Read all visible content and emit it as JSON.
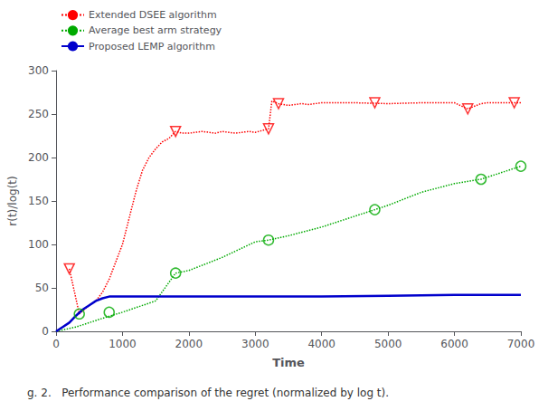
{
  "chart_data": {
    "type": "line",
    "xlabel": "Time",
    "ylabel": "r(t)/log(t)",
    "caption": "g. 2.   Performance comparison of the regret (normalized by log t).",
    "xlim": [
      0,
      7000
    ],
    "ylim": [
      0,
      300
    ],
    "xticks": [
      0,
      1000,
      2000,
      3000,
      4000,
      5000,
      6000,
      7000
    ],
    "yticks": [
      0,
      50,
      100,
      150,
      200,
      250,
      300
    ],
    "grid": false,
    "legend": "upper left",
    "series": [
      {
        "name": "Extended DSEE algorithm",
        "type": "line",
        "color": "#ff0000",
        "line_style": "dotted",
        "x": [
          200,
          350,
          500,
          600,
          700,
          800,
          900,
          1000,
          1100,
          1200,
          1300,
          1400,
          1500,
          1600,
          1700,
          1800,
          1900,
          2000,
          2100,
          2200,
          2300,
          2400,
          2500,
          2600,
          2700,
          2800,
          2900,
          3000,
          3100,
          3200,
          3250,
          3350,
          3500,
          3600,
          3700,
          3800,
          3900,
          4000,
          4500,
          5000,
          5500,
          6000,
          6200,
          6400,
          6500,
          7000
        ],
        "values": [
          72,
          20,
          30,
          35,
          45,
          60,
          80,
          100,
          130,
          160,
          185,
          200,
          210,
          218,
          222,
          230,
          228,
          228,
          229,
          230,
          229,
          228,
          230,
          229,
          228,
          229,
          230,
          229,
          231,
          233,
          265,
          262,
          260,
          261,
          262,
          261,
          262,
          263,
          263,
          262,
          263,
          263,
          256,
          262,
          263,
          263
        ]
      },
      {
        "name": "Extended DSEE algorithm",
        "type": "scatter",
        "color": "#ff0000",
        "marker": "triangle-down",
        "x": [
          200,
          1800,
          3200,
          3350,
          4800,
          6200,
          6900
        ],
        "values": [
          72,
          230,
          233,
          262,
          263,
          256,
          263
        ]
      },
      {
        "name": "Average best arm strategy",
        "type": "line",
        "color": "#00aa00",
        "line_style": "dotted",
        "x": [
          0,
          300,
          500,
          700,
          1000,
          1500,
          1800,
          2000,
          2500,
          3000,
          3200,
          3500,
          4000,
          4800,
          5000,
          5500,
          6000,
          6400,
          7000
        ],
        "values": [
          0,
          5,
          10,
          15,
          22,
          35,
          67,
          70,
          85,
          103,
          105,
          110,
          120,
          140,
          145,
          160,
          170,
          175,
          190
        ]
      },
      {
        "name": "Average best arm strategy",
        "type": "scatter",
        "color": "#00aa00",
        "marker": "circle",
        "x": [
          350,
          800,
          1800,
          3200,
          4800,
          6400,
          7000
        ],
        "values": [
          20,
          22,
          67,
          105,
          140,
          175,
          190
        ]
      },
      {
        "name": "Proposed LEMP algorithm",
        "type": "line",
        "color": "#0000cc",
        "line_style": "solid",
        "x": [
          0,
          100,
          200,
          300,
          400,
          500,
          600,
          700,
          800,
          900,
          1000,
          2000,
          3000,
          4000,
          5000,
          6000,
          7000
        ],
        "values": [
          0,
          5,
          10,
          18,
          25,
          30,
          35,
          38,
          40,
          40,
          40,
          40,
          40,
          40,
          41,
          42,
          42
        ]
      }
    ]
  }
}
